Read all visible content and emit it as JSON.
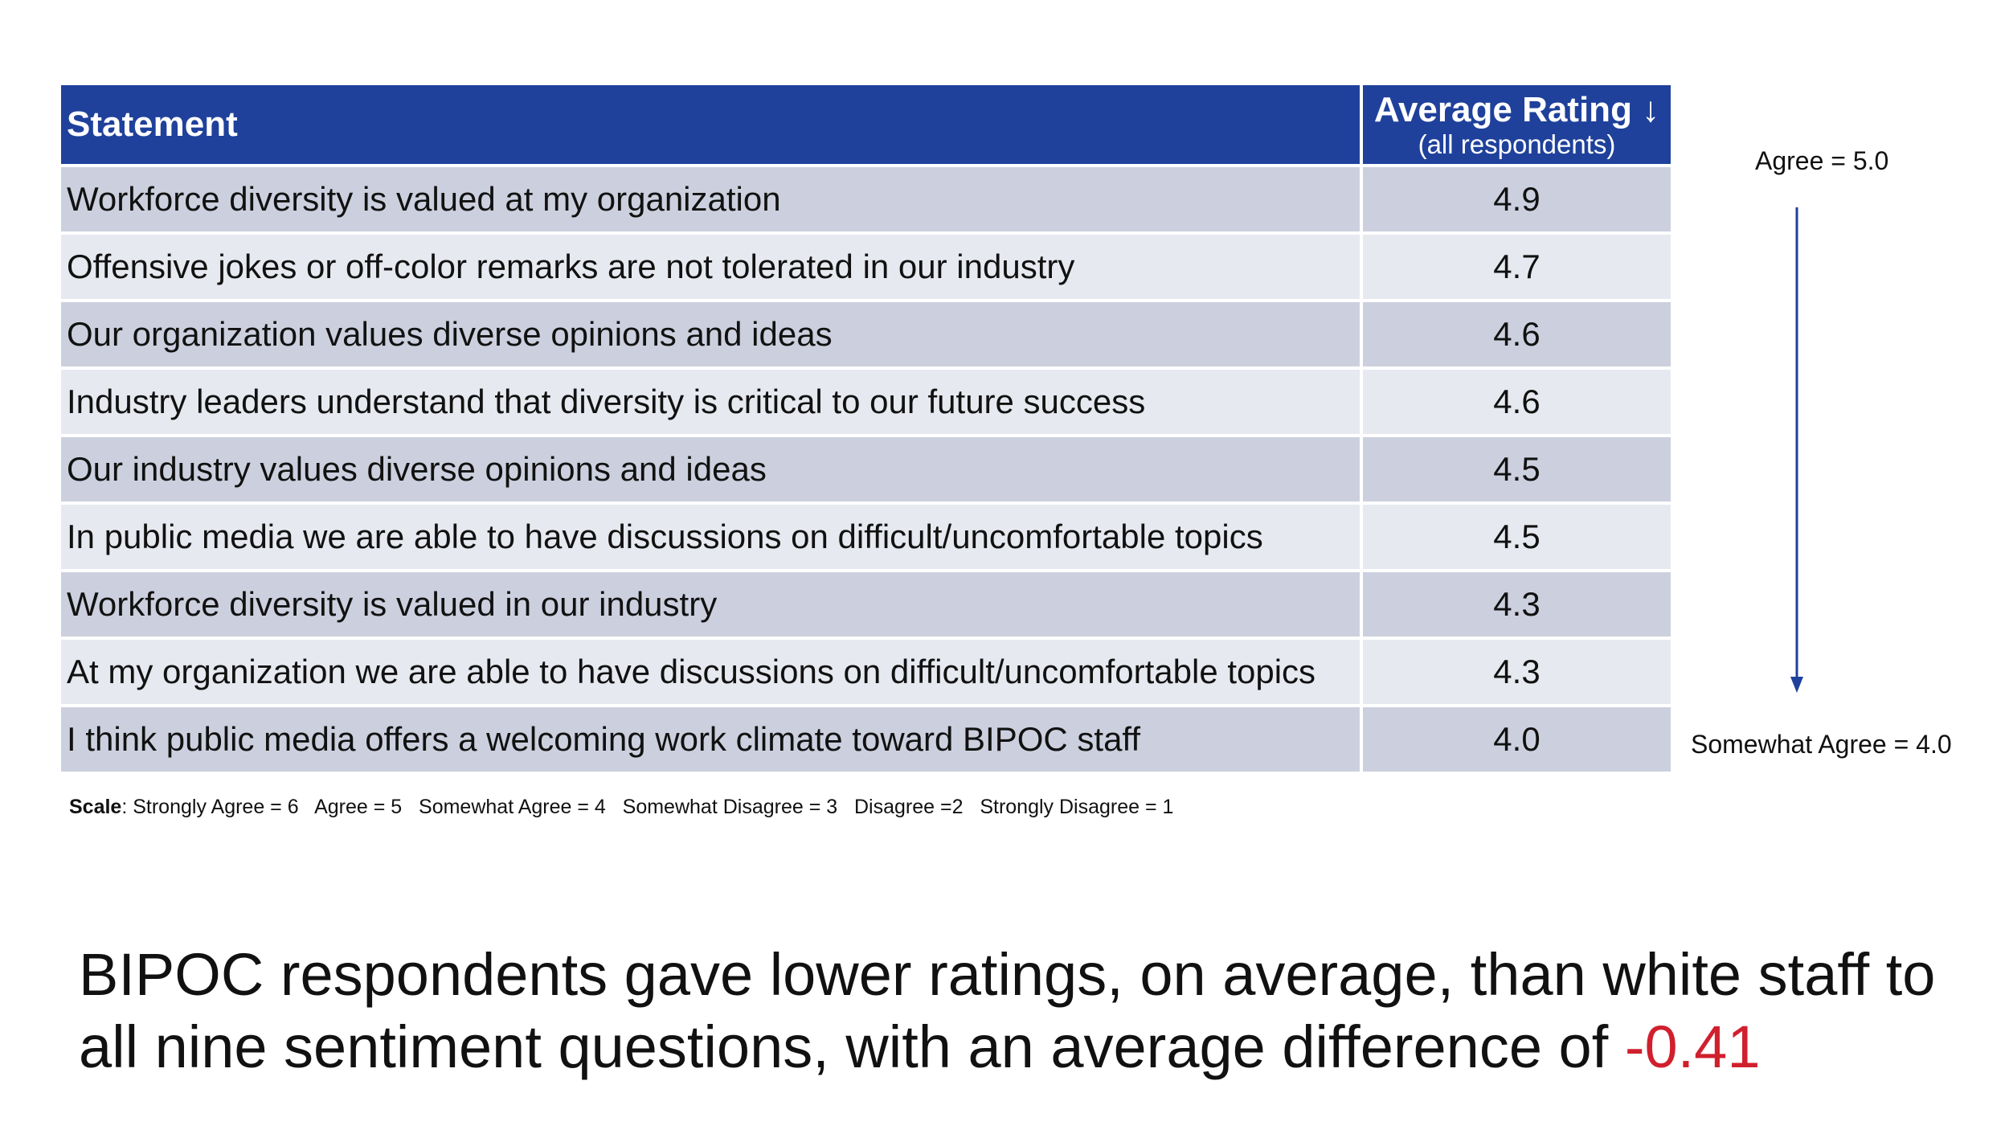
{
  "table": {
    "headers": {
      "statement": "Statement",
      "rating_main": "Average Rating ↓",
      "rating_sub": "(all respondents)"
    },
    "rows": [
      {
        "statement": "Workforce diversity is valued at my organization",
        "rating": "4.9"
      },
      {
        "statement": "Offensive jokes or off-color remarks are not tolerated in our industry",
        "rating": "4.7"
      },
      {
        "statement": "Our organization values diverse opinions and ideas",
        "rating": "4.6"
      },
      {
        "statement": "Industry leaders understand that diversity is critical to our future success",
        "rating": "4.6"
      },
      {
        "statement": "Our industry values diverse opinions and ideas",
        "rating": "4.5"
      },
      {
        "statement": "In public media we are able to have discussions on difficult/uncomfortable topics",
        "rating": "4.5"
      },
      {
        "statement": "Workforce diversity is valued in our industry",
        "rating": "4.3"
      },
      {
        "statement": "At my organization we are able to have discussions on difficult/uncomfortable topics",
        "rating": "4.3"
      },
      {
        "statement": "I think public media offers a welcoming work climate toward BIPOC staff",
        "rating": "4.0"
      }
    ]
  },
  "side_scale": {
    "top_label": "Agree = 5.0",
    "bottom_label": "Somewhat Agree  = 4.0",
    "arrow_icon": "arrow-down-icon"
  },
  "scale_note": {
    "label": "Scale",
    "text": ": Strongly Agree = 6   Agree = 5   Somewhat Agree = 4   Somewhat Disagree = 3   Disagree =2   Strongly Disagree = 1"
  },
  "takeaway": {
    "text": "BIPOC respondents gave lower ratings, on average, than white staff to all nine sentiment questions, with an average difference of ",
    "highlight": "-0.41"
  },
  "colors": {
    "header_bg": "#1f419b",
    "row_dark": "#ccd0de",
    "row_light": "#e7e9f0",
    "arrow": "#1f419b",
    "highlight": "#d0202e"
  }
}
